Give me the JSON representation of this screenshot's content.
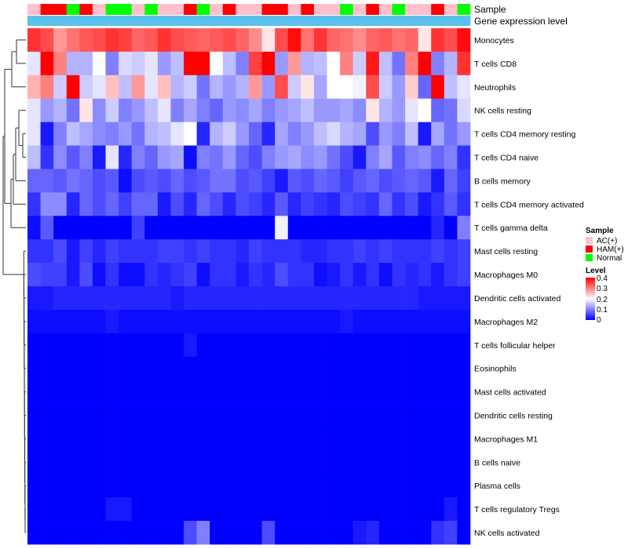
{
  "chart_data": {
    "type": "heatmap",
    "title": "",
    "annotation_tracks": [
      "Sample",
      "Gene expression level"
    ],
    "sample_groups": [
      "AC(+)",
      "HAM(+)",
      "Normal"
    ],
    "group_colors": {
      "AC(+)": "#FFC0CB",
      "HAM(+)": "#FF0000",
      "Normal": "#00FF00"
    },
    "gene_expression_color": "#5BC0EB",
    "sample_annotation": [
      "AC(+)",
      "HAM(+)",
      "HAM(+)",
      "Normal",
      "HAM(+)",
      "AC(+)",
      "Normal",
      "Normal",
      "AC(+)",
      "Normal",
      "AC(+)",
      "AC(+)",
      "HAM(+)",
      "Normal",
      "AC(+)",
      "HAM(+)",
      "AC(+)",
      "AC(+)",
      "HAM(+)",
      "HAM(+)",
      "AC(+)",
      "HAM(+)",
      "AC(+)",
      "AC(+)",
      "Normal",
      "AC(+)",
      "HAM(+)",
      "AC(+)",
      "Normal",
      "AC(+)",
      "AC(+)",
      "HAM(+)",
      "AC(+)",
      "Normal"
    ],
    "rows": [
      "Monocytes",
      "T cells CD8",
      "Neutrophils",
      "NK cells resting",
      "T cells CD4 memory resting",
      "T cells CD4 naive",
      "B cells memory",
      "T cells CD4 memory activated",
      "T cells gamma delta",
      "Mast cells resting",
      "Macrophages M0",
      "Dendritic cells activated",
      "Macrophages M2",
      "T cells follicular helper",
      "Eosinophils",
      "Mast cells activated",
      "Dendritic cells resting",
      "Macrophages M1",
      "B cells naive",
      "Plasma cells",
      "T cells regulatory  Tregs",
      "NK cells activated"
    ],
    "values": [
      [
        0.36,
        0.34,
        0.28,
        0.31,
        0.33,
        0.34,
        0.36,
        0.35,
        0.32,
        0.33,
        0.36,
        0.34,
        0.33,
        0.32,
        0.33,
        0.34,
        0.32,
        0.29,
        0.22,
        0.34,
        0.39,
        0.31,
        0.36,
        0.32,
        0.31,
        0.29,
        0.32,
        0.33,
        0.31,
        0.32,
        0.22,
        0.36,
        0.34,
        0.39
      ],
      [
        0.18,
        0.4,
        0.3,
        0.14,
        0.14,
        0.2,
        0.1,
        0.17,
        0.16,
        0.18,
        0.12,
        0.15,
        0.4,
        0.4,
        0.2,
        0.15,
        0.1,
        0.35,
        0.4,
        0.12,
        0.28,
        0.14,
        0.15,
        0.2,
        0.3,
        0.16,
        0.38,
        0.15,
        0.09,
        0.3,
        0.4,
        0.1,
        0.14,
        0.36
      ],
      [
        0.26,
        0.3,
        0.16,
        0.4,
        0.16,
        0.18,
        0.25,
        0.15,
        0.28,
        0.18,
        0.25,
        0.14,
        0.16,
        0.09,
        0.14,
        0.12,
        0.14,
        0.28,
        0.12,
        0.34,
        0.16,
        0.22,
        0.13,
        0.2,
        0.2,
        0.19,
        0.34,
        0.16,
        0.12,
        0.24,
        0.08,
        0.4,
        0.15,
        0.18
      ],
      [
        0.18,
        0.12,
        0.14,
        0.09,
        0.22,
        0.11,
        0.16,
        0.1,
        0.12,
        0.15,
        0.18,
        0.1,
        0.13,
        0.1,
        0.08,
        0.12,
        0.11,
        0.13,
        0.1,
        0.12,
        0.13,
        0.15,
        0.12,
        0.12,
        0.13,
        0.11,
        0.22,
        0.14,
        0.12,
        0.18,
        0.2,
        0.08,
        0.09,
        0.17
      ],
      [
        0.18,
        0.02,
        0.1,
        0.15,
        0.13,
        0.11,
        0.1,
        0.12,
        0.09,
        0.14,
        0.15,
        0.18,
        0.2,
        0.03,
        0.14,
        0.16,
        0.12,
        0.08,
        0.03,
        0.13,
        0.1,
        0.12,
        0.15,
        0.17,
        0.14,
        0.13,
        0.06,
        0.12,
        0.1,
        0.15,
        0.02,
        0.13,
        0.09,
        0.12
      ],
      [
        0.15,
        0.04,
        0.11,
        0.07,
        0.1,
        0.02,
        0.18,
        0.03,
        0.1,
        0.08,
        0.12,
        0.13,
        0.01,
        0.1,
        0.09,
        0.12,
        0.08,
        0.06,
        0.1,
        0.12,
        0.13,
        0.11,
        0.12,
        0.09,
        0.06,
        0.02,
        0.1,
        0.13,
        0.07,
        0.1,
        0.11,
        0.08,
        0.1,
        0.04
      ],
      [
        0.08,
        0.08,
        0.07,
        0.09,
        0.08,
        0.06,
        0.07,
        0.01,
        0.06,
        0.07,
        0.06,
        0.08,
        0.06,
        0.07,
        0.09,
        0.09,
        0.06,
        0.07,
        0.05,
        0.02,
        0.07,
        0.06,
        0.08,
        0.07,
        0.05,
        0.07,
        0.08,
        0.06,
        0.07,
        0.08,
        0.07,
        0.02,
        0.08,
        0.05
      ],
      [
        0.04,
        0.11,
        0.11,
        0.03,
        0.08,
        0.06,
        0.08,
        0.05,
        0.08,
        0.08,
        0.02,
        0.06,
        0.03,
        0.08,
        0.06,
        0.03,
        0.06,
        0.05,
        0.03,
        0.07,
        0.03,
        0.05,
        0.04,
        0.03,
        0.06,
        0.05,
        0.04,
        0.08,
        0.04,
        0.06,
        0.02,
        0.04,
        0.07,
        0.04
      ],
      [
        0.01,
        0.07,
        0.0,
        0.0,
        0.0,
        0.0,
        0.0,
        0.0,
        0.05,
        0.0,
        0.0,
        0.0,
        0.0,
        0.0,
        0.0,
        0.0,
        0.0,
        0.0,
        0.0,
        0.19,
        0.0,
        0.0,
        0.0,
        0.0,
        0.0,
        0.0,
        0.0,
        0.0,
        0.0,
        0.0,
        0.0,
        0.03,
        0.0,
        0.1
      ],
      [
        0.04,
        0.04,
        0.06,
        0.02,
        0.05,
        0.03,
        0.05,
        0.04,
        0.04,
        0.04,
        0.05,
        0.05,
        0.04,
        0.05,
        0.04,
        0.04,
        0.03,
        0.05,
        0.04,
        0.04,
        0.04,
        0.03,
        0.03,
        0.04,
        0.04,
        0.05,
        0.04,
        0.05,
        0.04,
        0.04,
        0.04,
        0.05,
        0.04,
        0.05
      ],
      [
        0.06,
        0.05,
        0.05,
        0.02,
        0.06,
        0.01,
        0.04,
        0.01,
        0.01,
        0.04,
        0.03,
        0.04,
        0.05,
        0.01,
        0.04,
        0.04,
        0.02,
        0.04,
        0.03,
        0.06,
        0.04,
        0.04,
        0.01,
        0.02,
        0.04,
        0.02,
        0.04,
        0.01,
        0.04,
        0.03,
        0.04,
        0.02,
        0.04,
        0.05
      ],
      [
        0.02,
        0.02,
        0.03,
        0.03,
        0.03,
        0.03,
        0.03,
        0.03,
        0.03,
        0.03,
        0.03,
        0.02,
        0.03,
        0.03,
        0.03,
        0.03,
        0.03,
        0.03,
        0.03,
        0.03,
        0.03,
        0.03,
        0.03,
        0.03,
        0.03,
        0.03,
        0.03,
        0.03,
        0.03,
        0.03,
        0.02,
        0.02,
        0.02,
        0.02
      ],
      [
        0.01,
        0.01,
        0.01,
        0.01,
        0.01,
        0.01,
        0.02,
        0.01,
        0.01,
        0.01,
        0.01,
        0.01,
        0.01,
        0.01,
        0.01,
        0.01,
        0.01,
        0.01,
        0.01,
        0.01,
        0.01,
        0.01,
        0.01,
        0.01,
        0.02,
        0.01,
        0.01,
        0.01,
        0.01,
        0.01,
        0.01,
        0.01,
        0.01,
        0.01
      ],
      [
        0.0,
        0.0,
        0.0,
        0.0,
        0.0,
        0.0,
        0.0,
        0.0,
        0.0,
        0.0,
        0.0,
        0.0,
        0.02,
        0.0,
        0.0,
        0.0,
        0.0,
        0.0,
        0.0,
        0.0,
        0.0,
        0.0,
        0.0,
        0.0,
        0.0,
        0.0,
        0.0,
        0.0,
        0.0,
        0.0,
        0.0,
        0.0,
        0.0,
        0.0
      ],
      [
        0.0,
        0.0,
        0.0,
        0.0,
        0.0,
        0.0,
        0.0,
        0.0,
        0.0,
        0.0,
        0.0,
        0.0,
        0.0,
        0.0,
        0.0,
        0.0,
        0.0,
        0.0,
        0.0,
        0.0,
        0.0,
        0.0,
        0.0,
        0.0,
        0.0,
        0.0,
        0.0,
        0.0,
        0.0,
        0.0,
        0.0,
        0.0,
        0.0,
        0.0
      ],
      [
        0.0,
        0.0,
        0.0,
        0.0,
        0.0,
        0.0,
        0.0,
        0.0,
        0.0,
        0.0,
        0.0,
        0.0,
        0.0,
        0.0,
        0.0,
        0.0,
        0.0,
        0.0,
        0.0,
        0.0,
        0.0,
        0.0,
        0.0,
        0.0,
        0.0,
        0.0,
        0.0,
        0.0,
        0.0,
        0.0,
        0.0,
        0.0,
        0.0,
        0.0
      ],
      [
        0.0,
        0.0,
        0.0,
        0.0,
        0.0,
        0.0,
        0.0,
        0.0,
        0.0,
        0.0,
        0.0,
        0.0,
        0.0,
        0.0,
        0.0,
        0.0,
        0.0,
        0.0,
        0.0,
        0.0,
        0.0,
        0.0,
        0.0,
        0.0,
        0.0,
        0.0,
        0.0,
        0.0,
        0.0,
        0.0,
        0.0,
        0.0,
        0.0,
        0.0
      ],
      [
        0.0,
        0.0,
        0.0,
        0.0,
        0.0,
        0.0,
        0.0,
        0.0,
        0.0,
        0.0,
        0.0,
        0.0,
        0.0,
        0.0,
        0.0,
        0.0,
        0.0,
        0.0,
        0.0,
        0.0,
        0.0,
        0.0,
        0.0,
        0.0,
        0.0,
        0.0,
        0.0,
        0.0,
        0.0,
        0.0,
        0.0,
        0.0,
        0.0,
        0.0
      ],
      [
        0.0,
        0.0,
        0.0,
        0.0,
        0.0,
        0.0,
        0.0,
        0.0,
        0.0,
        0.0,
        0.0,
        0.0,
        0.0,
        0.0,
        0.0,
        0.0,
        0.0,
        0.0,
        0.0,
        0.0,
        0.0,
        0.0,
        0.0,
        0.0,
        0.0,
        0.0,
        0.0,
        0.0,
        0.0,
        0.0,
        0.0,
        0.0,
        0.0,
        0.0
      ],
      [
        0.0,
        0.0,
        0.0,
        0.0,
        0.0,
        0.0,
        0.0,
        0.0,
        0.0,
        0.0,
        0.0,
        0.0,
        0.0,
        0.0,
        0.0,
        0.0,
        0.0,
        0.0,
        0.0,
        0.0,
        0.0,
        0.0,
        0.0,
        0.0,
        0.0,
        0.0,
        0.0,
        0.0,
        0.0,
        0.0,
        0.0,
        0.0,
        0.0,
        0.0
      ],
      [
        0.0,
        0.0,
        0.0,
        0.0,
        0.0,
        0.0,
        0.02,
        0.02,
        0.0,
        0.0,
        0.0,
        0.0,
        0.0,
        0.0,
        0.0,
        0.0,
        0.0,
        0.0,
        0.0,
        0.0,
        0.0,
        0.0,
        0.0,
        0.0,
        0.0,
        0.0,
        0.0,
        0.0,
        0.0,
        0.0,
        0.0,
        0.0,
        0.02,
        0.0
      ],
      [
        0.0,
        0.0,
        0.0,
        0.0,
        0.0,
        0.0,
        0.0,
        0.0,
        0.0,
        0.0,
        0.0,
        0.0,
        0.06,
        0.1,
        0.0,
        0.0,
        0.0,
        0.0,
        0.06,
        0.0,
        0.0,
        0.0,
        0.0,
        0.0,
        0.0,
        0.02,
        0.03,
        0.0,
        0.0,
        0.0,
        0.0,
        0.04,
        0.05,
        0.0
      ]
    ],
    "color_scale": {
      "min": 0,
      "mid": 0.2,
      "max": 0.4,
      "low_color": "#0000FF",
      "mid_color": "#FFFFFF",
      "high_color": "#FF0000"
    },
    "legend": {
      "sample_title": "Sample",
      "level_title": "Level",
      "level_ticks": [
        "0.4",
        "0.3",
        "0.2",
        "0.1",
        "0"
      ],
      "position": "right"
    },
    "dendrogram": "rows"
  }
}
